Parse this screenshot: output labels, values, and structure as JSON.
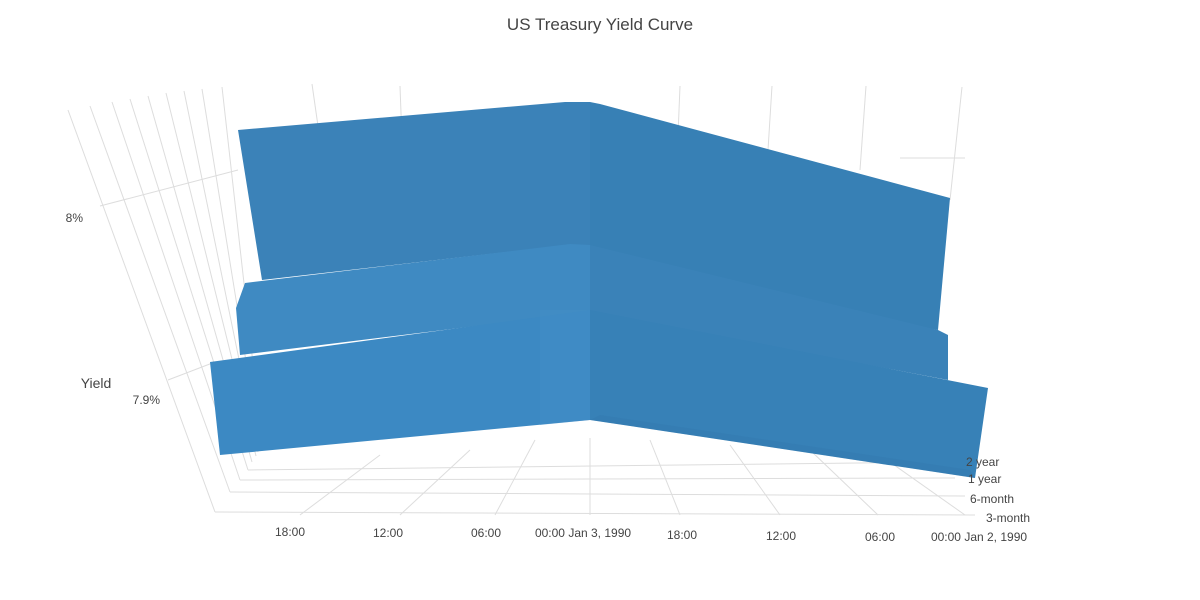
{
  "chart_data": {
    "type": "surface-3d",
    "title": "US Treasury Yield Curve",
    "zlabel": "Yield",
    "z_ticks": [
      "7.9%",
      "8%"
    ],
    "x_ticks": [
      "18:00",
      "12:00",
      "06:00",
      "00:00 Jan 3, 1990",
      "18:00",
      "12:00",
      "06:00",
      "00:00 Jan 2, 1990"
    ],
    "y_ticks": [
      "3-month",
      "6-month",
      "1 year",
      "2 year"
    ],
    "color": "#3a84bd",
    "grid": true
  }
}
